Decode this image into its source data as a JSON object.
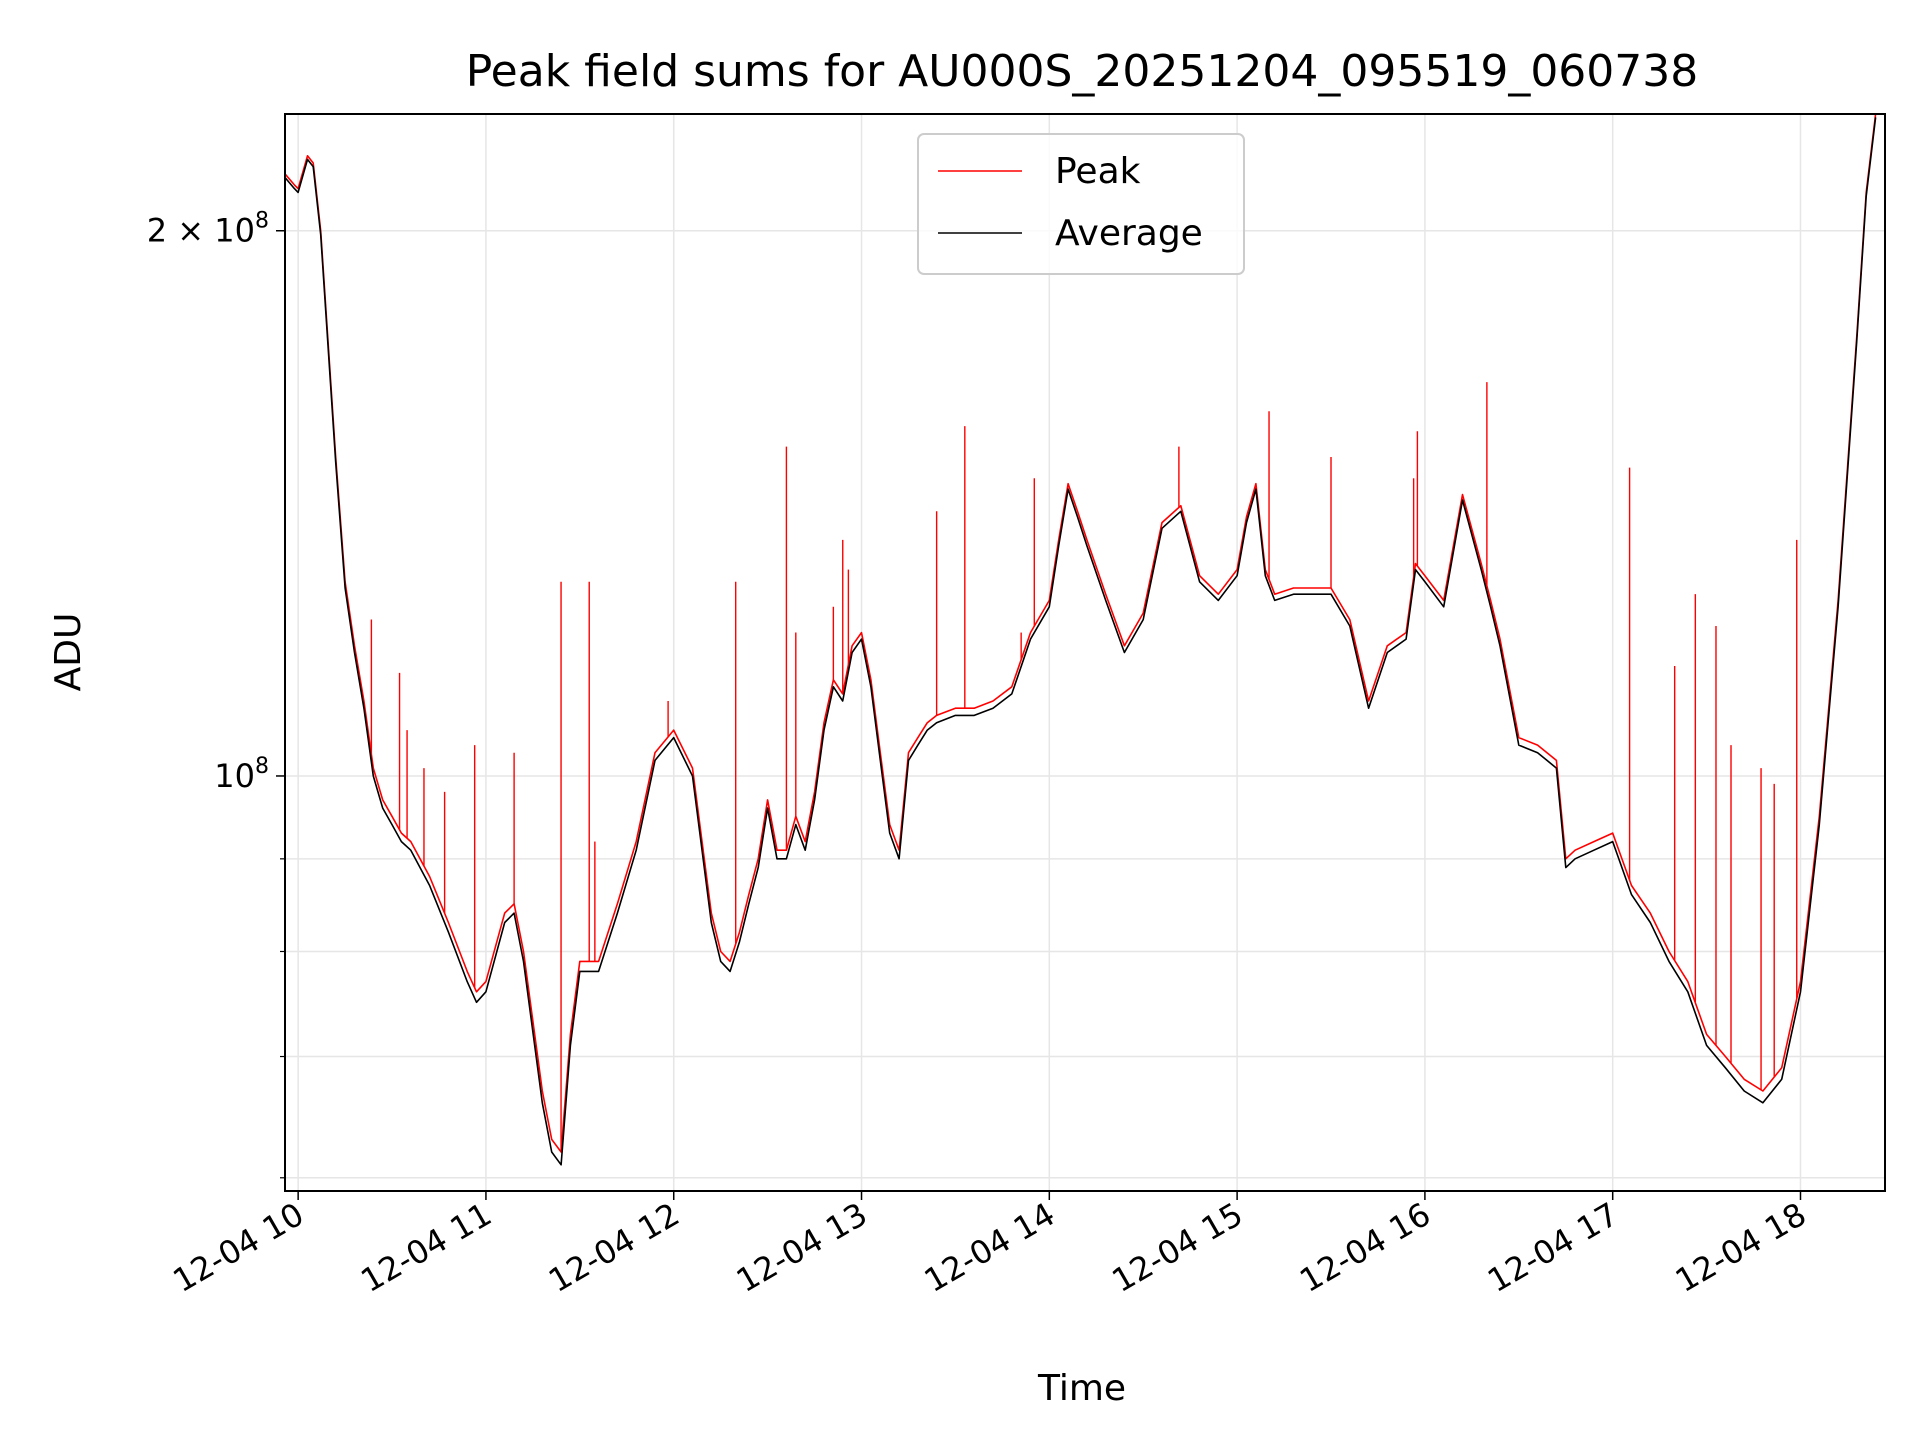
{
  "chart_data": {
    "type": "line",
    "title": "Peak field sums for AU000S_20251204_095519_060738",
    "xlabel": "Time",
    "ylabel": "ADU",
    "y_scale": "log",
    "xlim": [
      9.93,
      18.45
    ],
    "ylim": [
      59000000,
      232000000
    ],
    "grid": true,
    "legend_position": "upper center",
    "x_ticks": [
      {
        "value": 10,
        "label": "12-04 10"
      },
      {
        "value": 11,
        "label": "12-04 11"
      },
      {
        "value": 12,
        "label": "12-04 12"
      },
      {
        "value": 13,
        "label": "12-04 13"
      },
      {
        "value": 14,
        "label": "12-04 14"
      },
      {
        "value": 15,
        "label": "12-04 15"
      },
      {
        "value": 16,
        "label": "12-04 16"
      },
      {
        "value": 17,
        "label": "12-04 17"
      },
      {
        "value": 18,
        "label": "12-04 18"
      }
    ],
    "y_major_ticks": [
      {
        "value": 100000000,
        "base": "10",
        "exp": "8",
        "prefix": ""
      },
      {
        "value": 200000000,
        "base": "10",
        "exp": "8",
        "prefix": "2 × "
      }
    ],
    "y_minor_ticks": [
      60000000,
      70000000,
      80000000,
      90000000
    ],
    "series": [
      {
        "name": "Peak",
        "color": "#ff0000",
        "x": [
          9.93,
          9.98,
          10.0,
          10.05,
          10.08,
          10.12,
          10.2,
          10.25,
          10.3,
          10.35,
          10.4,
          10.45,
          10.5,
          10.55,
          10.6,
          10.7,
          10.8,
          10.9,
          10.95,
          11.0,
          11.1,
          11.15,
          11.2,
          11.3,
          11.35,
          11.4,
          11.45,
          11.5,
          11.6,
          11.7,
          11.8,
          11.9,
          12.0,
          12.1,
          12.2,
          12.25,
          12.3,
          12.35,
          12.4,
          12.45,
          12.5,
          12.55,
          12.6,
          12.65,
          12.7,
          12.75,
          12.8,
          12.85,
          12.9,
          12.95,
          13.0,
          13.05,
          13.1,
          13.15,
          13.2,
          13.25,
          13.3,
          13.35,
          13.4,
          13.5,
          13.6,
          13.7,
          13.8,
          13.9,
          14.0,
          14.05,
          14.1,
          14.15,
          14.2,
          14.3,
          14.4,
          14.5,
          14.6,
          14.7,
          14.8,
          14.9,
          15.0,
          15.05,
          15.1,
          15.15,
          15.2,
          15.3,
          15.4,
          15.5,
          15.6,
          15.7,
          15.8,
          15.9,
          15.95,
          16.0,
          16.1,
          16.2,
          16.3,
          16.35,
          16.4,
          16.5,
          16.6,
          16.65,
          16.7,
          16.75,
          16.8,
          16.9,
          17.0,
          17.1,
          17.2,
          17.3,
          17.4,
          17.5,
          17.6,
          17.7,
          17.8,
          17.9,
          18.0,
          18.1,
          18.2,
          18.3,
          18.35,
          18.4
        ],
        "values": [
          215000000,
          212000000,
          211000000,
          220000000,
          218000000,
          200000000,
          150000000,
          128000000,
          118000000,
          110000000,
          101000000,
          97000000,
          95000000,
          93000000,
          92000000,
          88000000,
          83000000,
          78000000,
          76000000,
          77000000,
          84000000,
          85000000,
          80000000,
          67000000,
          63000000,
          62000000,
          72000000,
          79000000,
          79000000,
          85000000,
          92000000,
          103000000,
          106000000,
          101000000,
          84000000,
          80000000,
          79000000,
          82000000,
          86000000,
          90000000,
          97000000,
          91000000,
          91000000,
          95000000,
          92000000,
          98000000,
          107000000,
          113000000,
          111000000,
          118000000,
          120000000,
          113000000,
          103000000,
          94000000,
          91000000,
          103000000,
          105000000,
          107000000,
          108000000,
          109000000,
          109000000,
          110000000,
          112000000,
          120000000,
          125000000,
          135000000,
          145000000,
          140000000,
          135000000,
          126000000,
          118000000,
          123000000,
          138000000,
          141000000,
          129000000,
          126000000,
          130000000,
          139000000,
          145000000,
          130000000,
          126000000,
          127000000,
          127000000,
          127000000,
          122000000,
          110000000,
          118000000,
          120000000,
          131000000,
          129000000,
          125000000,
          143000000,
          131000000,
          125000000,
          119000000,
          105000000,
          104000000,
          103000000,
          102000000,
          90000000,
          91000000,
          92000000,
          93000000,
          87000000,
          84000000,
          80000000,
          77000000,
          72000000,
          70000000,
          68000000,
          67000000,
          69000000,
          77000000,
          95000000,
          125000000,
          175000000,
          210000000,
          232000000
        ]
      },
      {
        "name": "Average",
        "color": "#000000",
        "x": [
          9.93,
          9.98,
          10.0,
          10.05,
          10.08,
          10.12,
          10.2,
          10.25,
          10.3,
          10.35,
          10.4,
          10.45,
          10.5,
          10.55,
          10.6,
          10.7,
          10.8,
          10.9,
          10.95,
          11.0,
          11.1,
          11.15,
          11.2,
          11.3,
          11.35,
          11.4,
          11.45,
          11.5,
          11.6,
          11.7,
          11.8,
          11.9,
          12.0,
          12.1,
          12.2,
          12.25,
          12.3,
          12.35,
          12.4,
          12.45,
          12.5,
          12.55,
          12.6,
          12.65,
          12.7,
          12.75,
          12.8,
          12.85,
          12.9,
          12.95,
          13.0,
          13.05,
          13.1,
          13.15,
          13.2,
          13.25,
          13.3,
          13.35,
          13.4,
          13.5,
          13.6,
          13.7,
          13.8,
          13.9,
          14.0,
          14.05,
          14.1,
          14.15,
          14.2,
          14.3,
          14.4,
          14.5,
          14.6,
          14.7,
          14.8,
          14.9,
          15.0,
          15.05,
          15.1,
          15.15,
          15.2,
          15.3,
          15.4,
          15.5,
          15.6,
          15.7,
          15.8,
          15.9,
          15.95,
          16.0,
          16.1,
          16.2,
          16.3,
          16.35,
          16.4,
          16.5,
          16.6,
          16.65,
          16.7,
          16.75,
          16.8,
          16.9,
          17.0,
          17.1,
          17.2,
          17.3,
          17.4,
          17.5,
          17.6,
          17.7,
          17.8,
          17.9,
          18.0,
          18.1,
          18.2,
          18.3,
          18.35,
          18.4
        ],
        "values": [
          214000000,
          211000000,
          210000000,
          219000000,
          217000000,
          199000000,
          149000000,
          127000000,
          117000000,
          109000000,
          100000000,
          96000000,
          94000000,
          92000000,
          91000000,
          87000000,
          82000000,
          77000000,
          75000000,
          76000000,
          83000000,
          84000000,
          79000000,
          66000000,
          62000000,
          61000000,
          71000000,
          78000000,
          78000000,
          84000000,
          91000000,
          102000000,
          105000000,
          100000000,
          83000000,
          79000000,
          78000000,
          81000000,
          85000000,
          89000000,
          96000000,
          90000000,
          90000000,
          94000000,
          91000000,
          97000000,
          106000000,
          112000000,
          110000000,
          117000000,
          119000000,
          112000000,
          102000000,
          93000000,
          90000000,
          102000000,
          104000000,
          106000000,
          107000000,
          108000000,
          108000000,
          109000000,
          111000000,
          119000000,
          124000000,
          134000000,
          144000000,
          139000000,
          134000000,
          125000000,
          117000000,
          122000000,
          137000000,
          140000000,
          128000000,
          125000000,
          129000000,
          138000000,
          144000000,
          129000000,
          125000000,
          126000000,
          126000000,
          126000000,
          121000000,
          109000000,
          117000000,
          119000000,
          130000000,
          128000000,
          124000000,
          142000000,
          130000000,
          124000000,
          118000000,
          104000000,
          103000000,
          102000000,
          101000000,
          89000000,
          90000000,
          91000000,
          92000000,
          86000000,
          83000000,
          79000000,
          76000000,
          71000000,
          69000000,
          67000000,
          66000000,
          68000000,
          76000000,
          94000000,
          124000000,
          174000000,
          209000000,
          231000000
        ]
      }
    ],
    "peak_spikes": [
      {
        "x": 10.39,
        "value": 122000000
      },
      {
        "x": 10.54,
        "value": 114000000
      },
      {
        "x": 10.58,
        "value": 106000000
      },
      {
        "x": 10.67,
        "value": 101000000
      },
      {
        "x": 10.78,
        "value": 98000000
      },
      {
        "x": 10.94,
        "value": 104000000
      },
      {
        "x": 11.15,
        "value": 103000000
      },
      {
        "x": 11.4,
        "value": 128000000
      },
      {
        "x": 11.55,
        "value": 128000000
      },
      {
        "x": 11.58,
        "value": 92000000
      },
      {
        "x": 11.97,
        "value": 110000000
      },
      {
        "x": 12.33,
        "value": 128000000
      },
      {
        "x": 12.6,
        "value": 152000000
      },
      {
        "x": 12.65,
        "value": 120000000
      },
      {
        "x": 12.85,
        "value": 124000000
      },
      {
        "x": 12.9,
        "value": 135000000
      },
      {
        "x": 12.93,
        "value": 130000000
      },
      {
        "x": 13.4,
        "value": 140000000
      },
      {
        "x": 13.55,
        "value": 156000000
      },
      {
        "x": 13.85,
        "value": 120000000
      },
      {
        "x": 13.92,
        "value": 146000000
      },
      {
        "x": 14.69,
        "value": 152000000
      },
      {
        "x": 15.17,
        "value": 159000000
      },
      {
        "x": 15.5,
        "value": 150000000
      },
      {
        "x": 15.94,
        "value": 146000000
      },
      {
        "x": 15.96,
        "value": 155000000
      },
      {
        "x": 16.33,
        "value": 165000000
      },
      {
        "x": 17.09,
        "value": 148000000
      },
      {
        "x": 17.33,
        "value": 115000000
      },
      {
        "x": 17.44,
        "value": 126000000
      },
      {
        "x": 17.55,
        "value": 121000000
      },
      {
        "x": 17.63,
        "value": 104000000
      },
      {
        "x": 17.79,
        "value": 101000000
      },
      {
        "x": 17.86,
        "value": 99000000
      },
      {
        "x": 17.98,
        "value": 135000000
      }
    ]
  }
}
